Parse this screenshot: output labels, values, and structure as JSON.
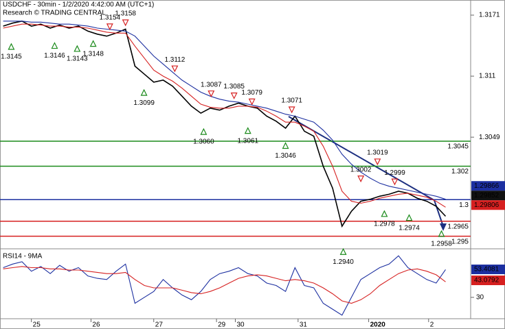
{
  "chart_data": [
    {
      "type": "line",
      "title": "USDCHF - 30min - 1/2/2020 4:42:00 AM (UTC+1)",
      "subtitle": "Research © TRADING CENTRAL",
      "x": [
        0,
        3,
        6,
        9,
        12,
        15,
        18,
        21,
        24,
        27,
        30,
        33,
        36,
        39,
        42,
        45,
        48,
        51,
        54,
        57,
        60,
        63,
        66,
        69,
        72,
        75,
        78,
        81,
        84,
        87,
        90,
        93,
        96,
        99,
        102,
        105,
        108,
        111,
        114,
        117,
        120,
        123,
        126,
        129,
        132,
        135,
        138,
        141
      ],
      "xlim": [
        -1,
        149
      ],
      "xticks": [
        {
          "value": 9,
          "label": "25"
        },
        {
          "value": 28,
          "label": "26"
        },
        {
          "value": 48,
          "label": "27"
        },
        {
          "value": 68,
          "label": "29"
        },
        {
          "value": 74,
          "label": "30"
        },
        {
          "value": 94,
          "label": "31"
        },
        {
          "value": 116.5,
          "label": "2020"
        },
        {
          "value": 135.6,
          "label": "2"
        }
      ],
      "ylim": [
        1.29395,
        1.31861
      ],
      "yticks": [
        1.3171,
        1.311,
        {
          "value": 1.3049,
          "label": "1.3049"
        }
      ],
      "series": [
        {
          "color": "#000000",
          "values": [
            1.316,
            1.3163,
            1.3165,
            1.316,
            1.3162,
            1.3158,
            1.3161,
            1.3158,
            1.316,
            1.3155,
            1.3152,
            1.315,
            1.3153,
            1.3157,
            1.312,
            1.3112,
            1.3104,
            1.3106,
            1.31,
            1.309,
            1.308,
            1.3073,
            1.3078,
            1.3076,
            1.308,
            1.3083,
            1.308,
            1.3078,
            1.307,
            1.3065,
            1.3058,
            1.307,
            1.3055,
            1.305,
            1.302,
            1.2998,
            1.296,
            1.2975,
            1.2985,
            1.2987,
            1.299,
            1.2992,
            1.2995,
            1.2993,
            1.2988,
            1.2985,
            1.298,
            1.297
          ]
        },
        {
          "color": "#d62020",
          "values": [
            1.3158,
            1.316,
            1.3162,
            1.3162,
            1.3161,
            1.316,
            1.316,
            1.3159,
            1.3159,
            1.3158,
            1.3156,
            1.3154,
            1.3153,
            1.3153,
            1.314,
            1.3128,
            1.3116,
            1.311,
            1.3105,
            1.3098,
            1.309,
            1.3082,
            1.3079,
            1.3078,
            1.3078,
            1.308,
            1.308,
            1.3079,
            1.3075,
            1.307,
            1.3064,
            1.3064,
            1.306,
            1.3055,
            1.304,
            1.302,
            1.2995,
            1.2985,
            1.2983,
            1.2985,
            1.2988,
            1.299,
            1.2992,
            1.2993,
            1.2991,
            1.2989,
            1.2985,
            1.2979
          ]
        },
        {
          "color": "#1c2fa0",
          "values": [
            1.3165,
            1.3165,
            1.3165,
            1.3164,
            1.3164,
            1.3163,
            1.3162,
            1.3162,
            1.3161,
            1.316,
            1.3158,
            1.3157,
            1.3156,
            1.3155,
            1.315,
            1.314,
            1.313,
            1.3122,
            1.3114,
            1.3106,
            1.31,
            1.3094,
            1.309,
            1.3087,
            1.3085,
            1.3084,
            1.3082,
            1.308,
            1.3078,
            1.3075,
            1.3072,
            1.307,
            1.3067,
            1.3064,
            1.3056,
            1.3046,
            1.3032,
            1.3022,
            1.3014,
            1.3008,
            1.3003,
            1.3,
            1.2998,
            1.2996,
            1.2994,
            1.2992,
            1.299,
            1.2987
          ]
        }
      ],
      "levels": [
        {
          "value": 1.3045,
          "color": "#1a8a1a"
        },
        {
          "value": 1.302,
          "color": "#1a8a1a"
        },
        {
          "value": 1.29866,
          "label": "1.3",
          "color": "#1c2fa0"
        },
        {
          "value": 1.2965,
          "color": "#d62020"
        },
        {
          "value": 1.295,
          "color": "#d62020"
        }
      ],
      "price_tags": [
        {
          "value": 1.29866,
          "color": "#1c2fa0"
        },
        {
          "value": 1.29852,
          "color": "#111111"
        },
        {
          "value": 1.29806,
          "color": "#d62020"
        }
      ],
      "annotations": [
        {
          "x": 2.6,
          "value": 1.3145,
          "label": "1.3145",
          "kind": "up"
        },
        {
          "x": 16.4,
          "value": 1.3146,
          "label": "1.3146",
          "kind": "up"
        },
        {
          "x": 23.6,
          "value": 1.3143,
          "label": "1.3143",
          "kind": "up"
        },
        {
          "x": 28.7,
          "value": 1.3148,
          "label": "1.3148",
          "kind": "up"
        },
        {
          "x": 34,
          "value": 1.3154,
          "label": "1.3154",
          "kind": "down"
        },
        {
          "x": 39,
          "value": 1.3158,
          "label": "1.3158",
          "kind": "down"
        },
        {
          "x": 44.9,
          "value": 1.3099,
          "label": "1.3099",
          "kind": "up"
        },
        {
          "x": 54.7,
          "value": 1.3112,
          "label": "1.3112",
          "kind": "down"
        },
        {
          "x": 63.9,
          "value": 1.306,
          "label": "1.3060",
          "kind": "up"
        },
        {
          "x": 66.3,
          "value": 1.3087,
          "label": "1.3087",
          "kind": "down"
        },
        {
          "x": 73.6,
          "value": 1.3085,
          "label": "1.3085",
          "kind": "down"
        },
        {
          "x": 78,
          "value": 1.3061,
          "label": "1.3061",
          "kind": "up"
        },
        {
          "x": 79.3,
          "value": 1.3079,
          "label": "1.3079",
          "kind": "down"
        },
        {
          "x": 90,
          "value": 1.3046,
          "label": "1.3046",
          "kind": "up"
        },
        {
          "x": 92,
          "value": 1.3071,
          "label": "1.3071",
          "kind": "down"
        },
        {
          "x": 108.4,
          "value": 1.294,
          "label": "1.2940",
          "kind": "up"
        },
        {
          "x": 114,
          "value": 1.3002,
          "label": "1.3002",
          "kind": "down"
        },
        {
          "x": 119.3,
          "value": 1.3019,
          "label": "1.3019",
          "kind": "down"
        },
        {
          "x": 121.5,
          "value": 1.2978,
          "label": "1.2978",
          "kind": "up"
        },
        {
          "x": 124.8,
          "value": 1.2999,
          "label": "1.2999",
          "kind": "down"
        },
        {
          "x": 129.4,
          "value": 1.2974,
          "label": "1.2974",
          "kind": "up"
        },
        {
          "x": 139.7,
          "value": 1.2958,
          "label": "1.2958",
          "kind": "up"
        }
      ]
    },
    {
      "type": "line",
      "title": "RSI14 - 9MA",
      "x": [
        0,
        3,
        6,
        9,
        12,
        15,
        18,
        21,
        24,
        27,
        30,
        33,
        36,
        39,
        42,
        45,
        48,
        51,
        54,
        57,
        60,
        63,
        66,
        69,
        72,
        75,
        78,
        81,
        84,
        87,
        90,
        93,
        96,
        99,
        102,
        105,
        108,
        111,
        114,
        117,
        120,
        123,
        126,
        129,
        132,
        135,
        138,
        141
      ],
      "ylim": [
        12,
        68
      ],
      "yticks": [
        30
      ],
      "series": [
        {
          "color": "#1c2fa0",
          "values": [
            55,
            58,
            60,
            52,
            56,
            50,
            57,
            52,
            55,
            48,
            46,
            45,
            52,
            58,
            25,
            30,
            35,
            45,
            38,
            32,
            28,
            35,
            45,
            50,
            52,
            55,
            50,
            48,
            42,
            40,
            35,
            55,
            40,
            38,
            25,
            20,
            15,
            30,
            45,
            50,
            55,
            58,
            65,
            55,
            50,
            45,
            42,
            53.4081
          ]
        },
        {
          "color": "#d62020",
          "values": [
            54,
            55,
            56,
            55,
            55,
            54,
            54,
            53,
            53,
            52,
            51,
            50,
            50,
            51,
            45,
            40,
            38,
            38,
            38,
            36,
            34,
            33,
            35,
            38,
            42,
            46,
            48,
            49,
            48,
            46,
            44,
            45,
            44,
            42,
            38,
            33,
            27,
            25,
            28,
            33,
            40,
            45,
            50,
            53,
            54,
            52,
            49,
            43.0792
          ]
        }
      ]
    }
  ]
}
